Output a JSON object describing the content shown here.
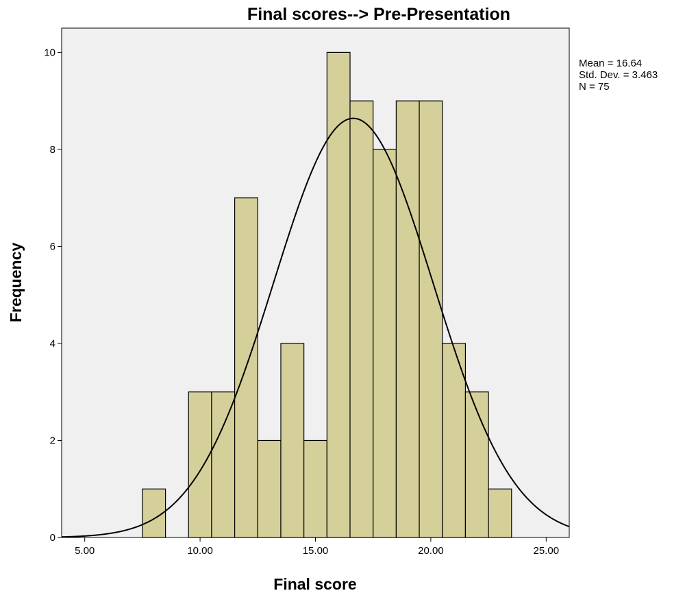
{
  "chart_data": {
    "type": "bar",
    "subtype": "histogram",
    "title": "Final scores--> Pre-Presentation",
    "xlabel": "Final score",
    "ylabel": "Frequency",
    "xlim": [
      4.0,
      26.0
    ],
    "ylim": [
      0,
      10.5
    ],
    "x_ticks": [
      5,
      10,
      15,
      20,
      25
    ],
    "x_tick_labels": [
      "5.00",
      "10.00",
      "15.00",
      "20.00",
      "25.00"
    ],
    "y_ticks": [
      0,
      2,
      4,
      6,
      8,
      10
    ],
    "y_tick_labels": [
      "0",
      "2",
      "4",
      "6",
      "8",
      "10"
    ],
    "bin_width": 1,
    "bins": [
      {
        "x": 8,
        "count": 1
      },
      {
        "x": 10,
        "count": 3
      },
      {
        "x": 11,
        "count": 3
      },
      {
        "x": 12,
        "count": 7
      },
      {
        "x": 13,
        "count": 2
      },
      {
        "x": 14,
        "count": 4
      },
      {
        "x": 15,
        "count": 2
      },
      {
        "x": 16,
        "count": 10
      },
      {
        "x": 17,
        "count": 9
      },
      {
        "x": 18,
        "count": 8
      },
      {
        "x": 19,
        "count": 9
      },
      {
        "x": 20,
        "count": 9
      },
      {
        "x": 21,
        "count": 4
      },
      {
        "x": 22,
        "count": 3
      },
      {
        "x": 23,
        "count": 1
      }
    ],
    "normal_curve": {
      "mean": 16.64,
      "std_dev": 3.463,
      "n": 75
    },
    "stats_text": [
      "Mean = 16.64",
      "Std. Dev. = 3.463",
      "N = 75"
    ],
    "colors": {
      "bar_fill": "#d5d09a",
      "bar_stroke": "#000000",
      "plot_background": "#f0f0f0",
      "curve": "#000000"
    },
    "grid": false,
    "legend": "none"
  }
}
